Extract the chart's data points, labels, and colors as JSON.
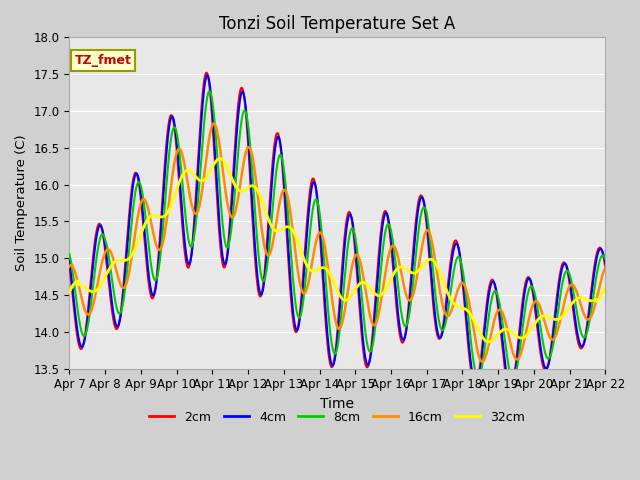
{
  "title": "Tonzi Soil Temperature Set A",
  "xlabel": "Time",
  "ylabel": "Soil Temperature (C)",
  "ylim": [
    13.5,
    18.0
  ],
  "annotation": "TZ_fmet",
  "xtick_labels": [
    "Apr 7",
    "Apr 8",
    "Apr 9",
    "Apr 10",
    "Apr 11",
    "Apr 12",
    "Apr 13",
    "Apr 14",
    "Apr 15",
    "Apr 16",
    "Apr 17",
    "Apr 18",
    "Apr 19",
    "Apr 20",
    "Apr 21",
    "Apr 22"
  ],
  "line_colors": [
    "#ff0000",
    "#0000ff",
    "#00cc00",
    "#ff8c00",
    "#ffff00"
  ],
  "line_labels": [
    "2cm",
    "4cm",
    "8cm",
    "16cm",
    "32cm"
  ],
  "line_widths": [
    1.5,
    1.5,
    1.5,
    1.8,
    2.0
  ],
  "legend_box_facecolor": "#ffffcc",
  "legend_box_edgecolor": "#999900",
  "annot_facecolor": "#ffffcc",
  "annot_edgecolor": "#999900",
  "annot_textcolor": "#cc0000",
  "fig_facecolor": "#d0d0d0",
  "ax_facecolor": "#e8e8e8",
  "grid_color": "#ffffff",
  "spine_color": "#aaaaaa"
}
